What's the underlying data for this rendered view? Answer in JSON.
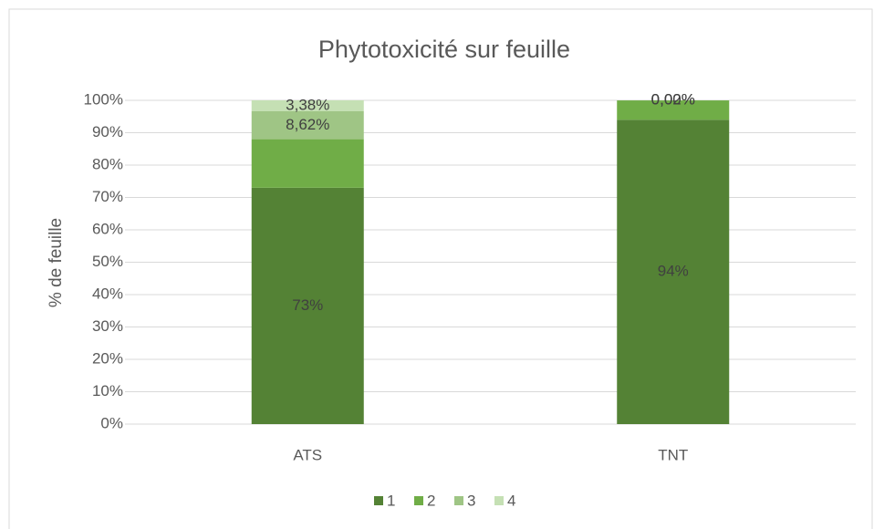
{
  "chart_data": {
    "type": "stacked_bar",
    "title": "Phytotoxicité sur feuille",
    "y_label": "% de feuille",
    "categories": [
      "ATS",
      "TNT"
    ],
    "series": [
      {
        "name": "1",
        "color": "#548235",
        "values": [
          73,
          94
        ],
        "value_labels": [
          "73%",
          "94%"
        ]
      },
      {
        "name": "2",
        "color": "#70ad47",
        "values": [
          15,
          5.98
        ],
        "value_labels": [
          null,
          null
        ]
      },
      {
        "name": "3",
        "color": "#9fc585",
        "values": [
          8.62,
          0.02
        ],
        "value_labels": [
          "8,62%",
          "0,02%"
        ]
      },
      {
        "name": "4",
        "color": "#c5e0b4",
        "values": [
          3.38,
          0
        ],
        "value_labels": [
          "3,38%",
          "0,00%"
        ]
      }
    ],
    "ylim": [
      0,
      100
    ],
    "yticks": [
      {
        "value": 0,
        "label": "0%"
      },
      {
        "value": 10,
        "label": "10%"
      },
      {
        "value": 20,
        "label": "20%"
      },
      {
        "value": 30,
        "label": "30%"
      },
      {
        "value": 40,
        "label": "40%"
      },
      {
        "value": 50,
        "label": "50%"
      },
      {
        "value": 60,
        "label": "60%"
      },
      {
        "value": 70,
        "label": "70%"
      },
      {
        "value": 80,
        "label": "80%"
      },
      {
        "value": 90,
        "label": "90%"
      },
      {
        "value": 100,
        "label": "100%"
      }
    ],
    "grid": true,
    "legend": "bottom"
  }
}
